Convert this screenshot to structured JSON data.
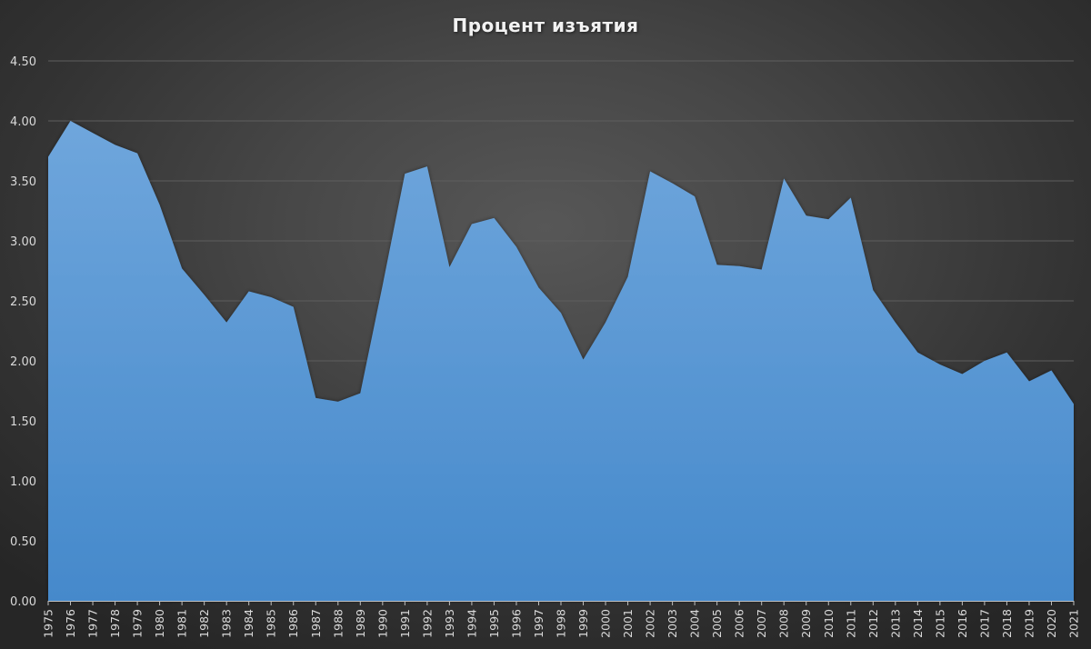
{
  "chart_data": {
    "type": "area",
    "title": "Процент изъятия",
    "xlabel": "",
    "ylabel": "",
    "ylim": [
      0,
      4.5
    ],
    "yticks": [
      "0.00",
      "0.50",
      "1.00",
      "1.50",
      "2.00",
      "2.50",
      "3.00",
      "3.50",
      "4.00",
      "4.50"
    ],
    "grid": true,
    "legend": null,
    "categories": [
      "1975",
      "1976",
      "1977",
      "1978",
      "1979",
      "1980",
      "1981",
      "1982",
      "1983",
      "1984",
      "1985",
      "1986",
      "1987",
      "1988",
      "1989",
      "1990",
      "1991",
      "1992",
      "1993",
      "1994",
      "1995",
      "1996",
      "1997",
      "1998",
      "1999",
      "2000",
      "2001",
      "2002",
      "2003",
      "2004",
      "2005",
      "2006",
      "2007",
      "2008",
      "2009",
      "2010",
      "2011",
      "2012",
      "2013",
      "2014",
      "2015",
      "2016",
      "2017",
      "2018",
      "2019",
      "2020",
      "2021"
    ],
    "series": [
      {
        "name": "Процент изъятия",
        "color": "#5b9bd5",
        "values": [
          3.7,
          4.0,
          3.9,
          3.8,
          3.73,
          3.3,
          2.77,
          2.55,
          2.32,
          2.58,
          2.53,
          2.45,
          1.69,
          1.66,
          1.73,
          2.63,
          3.56,
          3.62,
          2.78,
          3.14,
          3.19,
          2.95,
          2.61,
          2.4,
          2.01,
          2.32,
          2.7,
          3.58,
          3.48,
          3.37,
          2.8,
          2.79,
          2.76,
          3.52,
          3.21,
          3.18,
          3.36,
          2.59,
          2.32,
          2.07,
          1.97,
          1.89,
          2.0,
          2.07,
          1.83,
          1.92,
          1.64
        ]
      }
    ]
  },
  "colors": {
    "fill_top": "#6fa6dc",
    "fill_bottom": "#4589cb",
    "gridline": "#5e5e5e",
    "axis_text": "#d9d9d9",
    "title_text": "#f2f2f2"
  }
}
